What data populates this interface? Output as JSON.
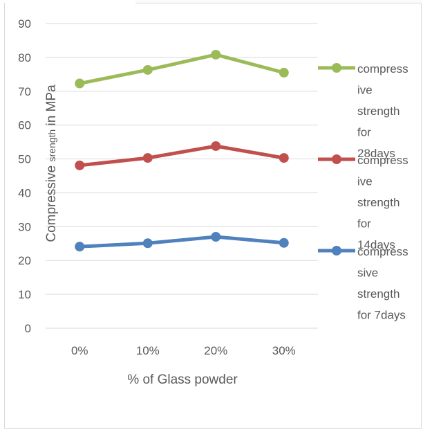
{
  "chart_data": {
    "type": "line",
    "title": "",
    "xlabel": "% of Glass powder",
    "ylabel_parts": [
      "Compressive ",
      "srength",
      " in MPa"
    ],
    "categories": [
      "0%",
      "10%",
      "20%",
      "30%"
    ],
    "ylim": [
      0,
      90
    ],
    "yticks": [
      0,
      10,
      20,
      30,
      40,
      50,
      60,
      70,
      80,
      90
    ],
    "grid": true,
    "legend_position": "right",
    "series": [
      {
        "name": "compressive strength for 28days",
        "legend_lines": [
          "compress",
          "ive",
          "strength",
          "for",
          "28days"
        ],
        "color": "#9bbb59",
        "values": [
          72.3,
          76.3,
          80.8,
          75.5
        ]
      },
      {
        "name": "compressive strength for 14days",
        "legend_lines": [
          "compress",
          "ive",
          "strength",
          "for",
          "14days"
        ],
        "color": "#c0504d",
        "values": [
          48.1,
          50.3,
          53.8,
          50.3
        ]
      },
      {
        "name": "compressive strength for 7days",
        "legend_lines": [
          "compress",
          "sive",
          "strength",
          "for 7days"
        ],
        "color": "#4f81bd",
        "values": [
          24.1,
          25.1,
          27.0,
          25.2
        ]
      }
    ]
  }
}
